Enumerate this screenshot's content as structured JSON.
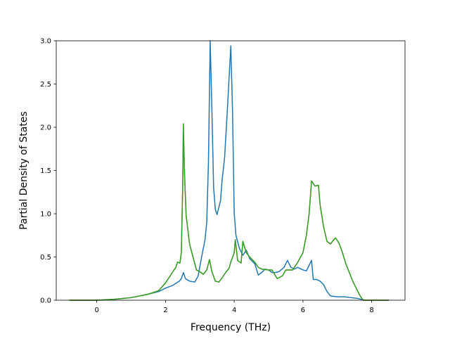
{
  "chart_data": {
    "type": "line",
    "title": "",
    "xlabel": "Frequency (THz)",
    "ylabel": "Partial Density of States",
    "xlim": [
      -1.18,
      8.97
    ],
    "ylim": [
      0.0,
      3.0
    ],
    "xticks": [
      0,
      2,
      4,
      6,
      8
    ],
    "yticks": [
      0.0,
      0.5,
      1.0,
      1.5,
      2.0,
      2.5,
      3.0
    ],
    "xtick_labels": [
      "0",
      "2",
      "4",
      "6",
      "8"
    ],
    "ytick_labels": [
      "0.0",
      "0.5",
      "1.0",
      "1.5",
      "2.0",
      "2.5",
      "3.0"
    ],
    "grid": false,
    "legend": false,
    "series": [
      {
        "color": "#1f77b4",
        "points": [
          [
            -0.8,
            0.0
          ],
          [
            0.0,
            0.0
          ],
          [
            0.5,
            0.01
          ],
          [
            1.0,
            0.03
          ],
          [
            1.5,
            0.07
          ],
          [
            1.8,
            0.1
          ],
          [
            2.0,
            0.14
          ],
          [
            2.2,
            0.17
          ],
          [
            2.4,
            0.22
          ],
          [
            2.46,
            0.25
          ],
          [
            2.52,
            0.32
          ],
          [
            2.58,
            0.25
          ],
          [
            2.7,
            0.22
          ],
          [
            2.85,
            0.21
          ],
          [
            2.95,
            0.28
          ],
          [
            3.05,
            0.5
          ],
          [
            3.15,
            0.7
          ],
          [
            3.2,
            0.9
          ],
          [
            3.25,
            1.6
          ],
          [
            3.3,
            3.0
          ],
          [
            3.35,
            2.2
          ],
          [
            3.4,
            1.3
          ],
          [
            3.45,
            1.05
          ],
          [
            3.5,
            0.99
          ],
          [
            3.6,
            1.15
          ],
          [
            3.65,
            1.4
          ],
          [
            3.72,
            1.65
          ],
          [
            3.8,
            2.2
          ],
          [
            3.9,
            2.94
          ],
          [
            3.95,
            2.2
          ],
          [
            4.0,
            1.0
          ],
          [
            4.05,
            0.75
          ],
          [
            4.15,
            0.6
          ],
          [
            4.25,
            0.52
          ],
          [
            4.35,
            0.58
          ],
          [
            4.45,
            0.48
          ],
          [
            4.6,
            0.42
          ],
          [
            4.7,
            0.29
          ],
          [
            4.8,
            0.32
          ],
          [
            4.9,
            0.36
          ],
          [
            5.0,
            0.35
          ],
          [
            5.1,
            0.32
          ],
          [
            5.2,
            0.32
          ],
          [
            5.3,
            0.33
          ],
          [
            5.45,
            0.38
          ],
          [
            5.55,
            0.46
          ],
          [
            5.65,
            0.38
          ],
          [
            5.75,
            0.36
          ],
          [
            5.85,
            0.38
          ],
          [
            6.0,
            0.35
          ],
          [
            6.1,
            0.34
          ],
          [
            6.25,
            0.46
          ],
          [
            6.3,
            0.24
          ],
          [
            6.4,
            0.24
          ],
          [
            6.5,
            0.22
          ],
          [
            6.6,
            0.18
          ],
          [
            6.7,
            0.1
          ],
          [
            6.8,
            0.05
          ],
          [
            7.0,
            0.04
          ],
          [
            7.2,
            0.04
          ],
          [
            7.4,
            0.03
          ],
          [
            7.6,
            0.02
          ],
          [
            7.8,
            0.0
          ],
          [
            8.5,
            0.0
          ]
        ]
      },
      {
        "color": "#ff7f0e",
        "points": [
          [
            -0.8,
            0.0
          ],
          [
            0.0,
            0.0
          ],
          [
            0.5,
            0.01
          ],
          [
            1.0,
            0.03
          ],
          [
            1.5,
            0.07
          ],
          [
            1.8,
            0.11
          ],
          [
            2.0,
            0.2
          ],
          [
            2.1,
            0.26
          ],
          [
            2.2,
            0.32
          ],
          [
            2.3,
            0.38
          ],
          [
            2.35,
            0.44
          ],
          [
            2.42,
            0.43
          ],
          [
            2.46,
            0.55
          ],
          [
            2.5,
            1.3
          ],
          [
            2.52,
            2.04
          ],
          [
            2.55,
            1.5
          ],
          [
            2.6,
            0.98
          ],
          [
            2.7,
            0.65
          ],
          [
            2.8,
            0.5
          ],
          [
            2.9,
            0.35
          ],
          [
            3.0,
            0.33
          ],
          [
            3.1,
            0.3
          ],
          [
            3.2,
            0.35
          ],
          [
            3.28,
            0.47
          ],
          [
            3.35,
            0.33
          ],
          [
            3.45,
            0.22
          ],
          [
            3.55,
            0.21
          ],
          [
            3.65,
            0.26
          ],
          [
            3.75,
            0.32
          ],
          [
            3.85,
            0.37
          ],
          [
            3.9,
            0.44
          ],
          [
            4.0,
            0.55
          ],
          [
            4.03,
            0.7
          ],
          [
            4.1,
            0.46
          ],
          [
            4.2,
            0.43
          ],
          [
            4.25,
            0.68
          ],
          [
            4.35,
            0.55
          ],
          [
            4.45,
            0.5
          ],
          [
            4.6,
            0.44
          ],
          [
            4.7,
            0.38
          ],
          [
            4.8,
            0.36
          ],
          [
            5.0,
            0.35
          ],
          [
            5.1,
            0.35
          ],
          [
            5.25,
            0.25
          ],
          [
            5.4,
            0.28
          ],
          [
            5.5,
            0.35
          ],
          [
            5.7,
            0.35
          ],
          [
            5.85,
            0.44
          ],
          [
            6.0,
            0.55
          ],
          [
            6.1,
            0.75
          ],
          [
            6.18,
            1.0
          ],
          [
            6.25,
            1.38
          ],
          [
            6.35,
            1.32
          ],
          [
            6.45,
            1.33
          ],
          [
            6.5,
            1.1
          ],
          [
            6.6,
            0.85
          ],
          [
            6.7,
            0.68
          ],
          [
            6.8,
            0.65
          ],
          [
            6.9,
            0.7
          ],
          [
            6.95,
            0.72
          ],
          [
            7.05,
            0.66
          ],
          [
            7.15,
            0.55
          ],
          [
            7.25,
            0.42
          ],
          [
            7.35,
            0.32
          ],
          [
            7.45,
            0.22
          ],
          [
            7.55,
            0.14
          ],
          [
            7.65,
            0.06
          ],
          [
            7.75,
            0.0
          ],
          [
            8.5,
            0.0
          ]
        ]
      },
      {
        "color": "#2ca02c",
        "points": [
          [
            -0.8,
            0.0
          ],
          [
            0.0,
            0.0
          ],
          [
            0.5,
            0.01
          ],
          [
            1.0,
            0.03
          ],
          [
            1.5,
            0.07
          ],
          [
            1.8,
            0.11
          ],
          [
            2.0,
            0.2
          ],
          [
            2.1,
            0.26
          ],
          [
            2.2,
            0.32
          ],
          [
            2.3,
            0.38
          ],
          [
            2.35,
            0.44
          ],
          [
            2.42,
            0.43
          ],
          [
            2.46,
            0.55
          ],
          [
            2.5,
            1.3
          ],
          [
            2.52,
            2.04
          ],
          [
            2.55,
            1.5
          ],
          [
            2.6,
            0.98
          ],
          [
            2.7,
            0.65
          ],
          [
            2.8,
            0.5
          ],
          [
            2.9,
            0.35
          ],
          [
            3.0,
            0.33
          ],
          [
            3.1,
            0.3
          ],
          [
            3.2,
            0.35
          ],
          [
            3.28,
            0.47
          ],
          [
            3.35,
            0.33
          ],
          [
            3.45,
            0.22
          ],
          [
            3.55,
            0.21
          ],
          [
            3.65,
            0.26
          ],
          [
            3.75,
            0.32
          ],
          [
            3.85,
            0.37
          ],
          [
            3.9,
            0.44
          ],
          [
            4.0,
            0.55
          ],
          [
            4.03,
            0.7
          ],
          [
            4.1,
            0.46
          ],
          [
            4.2,
            0.43
          ],
          [
            4.25,
            0.68
          ],
          [
            4.35,
            0.55
          ],
          [
            4.45,
            0.5
          ],
          [
            4.6,
            0.44
          ],
          [
            4.7,
            0.38
          ],
          [
            4.8,
            0.36
          ],
          [
            5.0,
            0.35
          ],
          [
            5.1,
            0.35
          ],
          [
            5.25,
            0.25
          ],
          [
            5.4,
            0.28
          ],
          [
            5.5,
            0.35
          ],
          [
            5.7,
            0.35
          ],
          [
            5.85,
            0.44
          ],
          [
            6.0,
            0.55
          ],
          [
            6.1,
            0.75
          ],
          [
            6.18,
            1.0
          ],
          [
            6.25,
            1.38
          ],
          [
            6.35,
            1.32
          ],
          [
            6.45,
            1.33
          ],
          [
            6.5,
            1.1
          ],
          [
            6.6,
            0.85
          ],
          [
            6.7,
            0.68
          ],
          [
            6.8,
            0.65
          ],
          [
            6.9,
            0.7
          ],
          [
            6.95,
            0.72
          ],
          [
            7.05,
            0.66
          ],
          [
            7.15,
            0.55
          ],
          [
            7.25,
            0.42
          ],
          [
            7.35,
            0.32
          ],
          [
            7.45,
            0.22
          ],
          [
            7.55,
            0.14
          ],
          [
            7.65,
            0.06
          ],
          [
            7.75,
            0.0
          ],
          [
            8.5,
            0.0
          ]
        ]
      }
    ]
  }
}
